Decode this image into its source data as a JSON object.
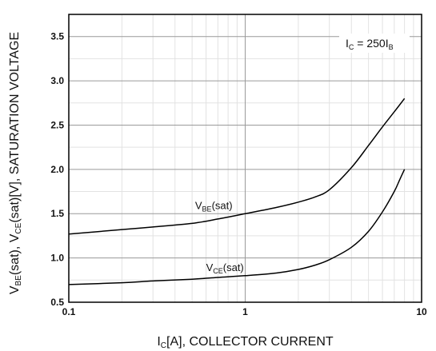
{
  "chart_data": {
    "type": "line",
    "xscale": "log",
    "xlim": [
      0.1,
      10
    ],
    "ylim": [
      0.5,
      3.75
    ],
    "x_ticks": [
      0.1,
      1,
      10
    ],
    "x_tick_labels": [
      "0.1",
      "1",
      "10"
    ],
    "y_ticks": [
      0.5,
      1.0,
      1.5,
      2.0,
      2.5,
      3.0,
      3.5
    ],
    "y_tick_labels": [
      "0.5",
      "1.0",
      "1.5",
      "2.0",
      "2.5",
      "3.0",
      "3.5"
    ],
    "grid": true,
    "xlabel": {
      "main": "I",
      "sub": "C",
      "rest": "[A], COLLECTOR CURRENT"
    },
    "ylabel": {
      "p1": "V",
      "s1": "BE",
      "p2": "(sat), V",
      "s2": "CE",
      "p3": "(sat)[V], SATURATION VOLTAGE"
    },
    "annotation": {
      "p1": "I",
      "s1": "C",
      "p2": " = 250I",
      "s2": "B"
    },
    "series": [
      {
        "name": {
          "main": "V",
          "sub": "BE",
          "rest": "(sat)"
        },
        "color": "#000000",
        "x": [
          0.1,
          0.2,
          0.3,
          0.5,
          0.7,
          1.0,
          1.5,
          2.0,
          2.5,
          3.0,
          4.0,
          5.0,
          6.0,
          7.0,
          8.0
        ],
        "y": [
          1.27,
          1.32,
          1.35,
          1.39,
          1.44,
          1.5,
          1.57,
          1.63,
          1.69,
          1.77,
          2.02,
          2.27,
          2.48,
          2.65,
          2.8
        ]
      },
      {
        "name": {
          "main": "V",
          "sub": "CE",
          "rest": "(sat)"
        },
        "color": "#000000",
        "x": [
          0.1,
          0.2,
          0.3,
          0.5,
          0.7,
          1.0,
          1.5,
          2.0,
          2.5,
          3.0,
          4.0,
          5.0,
          6.0,
          7.0,
          7.5,
          8.0
        ],
        "y": [
          0.7,
          0.72,
          0.74,
          0.76,
          0.78,
          0.8,
          0.83,
          0.87,
          0.92,
          0.98,
          1.12,
          1.3,
          1.52,
          1.75,
          1.88,
          2.0
        ]
      }
    ]
  }
}
